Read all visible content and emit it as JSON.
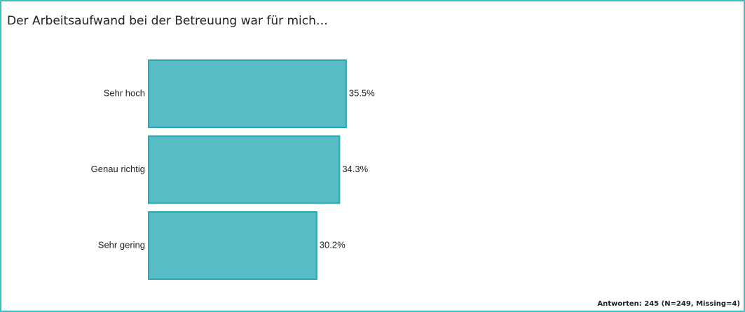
{
  "chart_data": {
    "type": "hbar",
    "title": "Der Arbeitsaufwand bei der Betreuung war für mich…",
    "categories": [
      "Sehr hoch",
      "Genau richtig",
      "Sehr gering"
    ],
    "values": [
      35.5,
      34.3,
      30.2
    ],
    "value_labels": [
      "35.5%",
      "34.3%",
      "30.2%"
    ],
    "color": "#57bcc6",
    "note": "Antworten: 245 (N=249, Missing=4)"
  }
}
